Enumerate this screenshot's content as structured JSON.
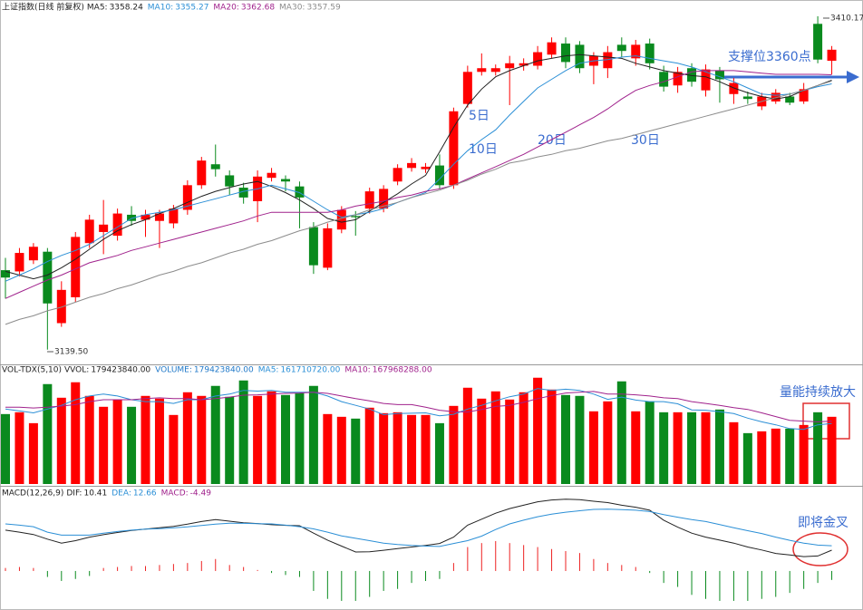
{
  "chart_data": [
    {
      "type": "candlestick",
      "title": "上证指数(日线 前复权)",
      "up_color": "#ff0000",
      "down_color": "#0a8a1e",
      "ylim": [
        3129,
        3416
      ],
      "open": [
        3204,
        3203,
        3212,
        3219,
        3161,
        3182,
        3226,
        3235,
        3232,
        3249,
        3245,
        3244,
        3242,
        3253,
        3273,
        3290,
        3281,
        3271,
        3260,
        3279,
        3278,
        3272,
        3239,
        3206,
        3237,
        3248,
        3254,
        3254,
        3276,
        3287,
        3286,
        3289,
        3273,
        3339,
        3365,
        3365,
        3368,
        3370,
        3370,
        3379,
        3388,
        3387,
        3370,
        3368,
        3387,
        3376,
        3388,
        3365,
        3354,
        3368,
        3350,
        3366,
        3347,
        3345,
        3337,
        3341,
        3345,
        3341,
        3404,
        3374
      ],
      "high": [
        3214,
        3222,
        3226,
        3222,
        3195,
        3235,
        3249,
        3261,
        3254,
        3256,
        3253,
        3253,
        3257,
        3277,
        3296,
        3306,
        3285,
        3275,
        3285,
        3287,
        3281,
        3276,
        3243,
        3242,
        3256,
        3252,
        3271,
        3273,
        3290,
        3295,
        3291,
        3298,
        3336,
        3370,
        3380,
        3371,
        3378,
        3376,
        3386,
        3393,
        3393,
        3390,
        3381,
        3386,
        3393,
        3391,
        3392,
        3370,
        3369,
        3372,
        3371,
        3369,
        3360,
        3349,
        3348,
        3351,
        3348,
        3356,
        3410.17,
        3386
      ],
      "low": [
        3181,
        3199,
        3209,
        3139.5,
        3158,
        3178,
        3222,
        3217,
        3228,
        3240,
        3231,
        3222,
        3238,
        3249,
        3270,
        3280,
        3265,
        3258,
        3243,
        3276,
        3268,
        3238,
        3201,
        3204,
        3234,
        3232,
        3250,
        3251,
        3273,
        3284,
        3283,
        3270,
        3270,
        3336,
        3362,
        3362,
        3338,
        3366,
        3367,
        3376,
        3368,
        3364,
        3355,
        3360,
        3377,
        3370,
        3367,
        3349,
        3348,
        3353,
        3345,
        3340,
        3339,
        3339,
        3334,
        3339,
        3338,
        3339,
        3372,
        3363
      ],
      "close": [
        3198,
        3218,
        3223,
        3177,
        3188,
        3231,
        3245,
        3241,
        3250,
        3244,
        3249,
        3250,
        3254,
        3273,
        3293,
        3286,
        3272,
        3263,
        3280,
        3283,
        3276,
        3263,
        3208,
        3238,
        3253,
        3247,
        3268,
        3270,
        3287,
        3291,
        3288,
        3273,
        3333,
        3365,
        3368,
        3368,
        3372,
        3372,
        3381,
        3389,
        3373,
        3368,
        3378,
        3381,
        3382,
        3387,
        3372,
        3353,
        3365,
        3357,
        3367,
        3359,
        3356,
        3343,
        3345,
        3348,
        3340,
        3351,
        3375,
        3383
      ],
      "series": [
        {
          "name": "MA5:",
          "color": "#222222",
          "values": [
            3203,
            3200,
            3197,
            3200,
            3206,
            3213,
            3221,
            3229,
            3236,
            3241,
            3245,
            3250,
            3254,
            3259,
            3264,
            3268,
            3271,
            3274,
            3276,
            3272,
            3267,
            3261,
            3254,
            3246,
            3243,
            3245,
            3252,
            3259,
            3266,
            3274,
            3281,
            3300,
            3320,
            3338,
            3351,
            3361,
            3366,
            3370,
            3374,
            3376,
            3378,
            3379,
            3378,
            3377,
            3376,
            3372,
            3369,
            3366,
            3364,
            3362,
            3361,
            3357,
            3352,
            3348,
            3345,
            3343,
            3345,
            3350,
            3354,
            3358.24
          ]
        },
        {
          "name": "MA10:",
          "color": "#2b8fd6",
          "values": [
            3195,
            3200,
            3205,
            3211,
            3216,
            3220,
            3225,
            3232,
            3239,
            3246,
            3249,
            3251,
            3253,
            3256,
            3259,
            3262,
            3265,
            3268,
            3270,
            3273,
            3270,
            3267,
            3260,
            3253,
            3247,
            3249,
            3251,
            3254,
            3259,
            3263,
            3267,
            3278,
            3290,
            3301,
            3310,
            3318,
            3330,
            3341,
            3352,
            3359,
            3366,
            3372,
            3374,
            3375,
            3377,
            3378,
            3376,
            3374,
            3372,
            3369,
            3365,
            3361,
            3357,
            3352,
            3347,
            3346,
            3347,
            3350,
            3353,
            3355.27
          ]
        },
        {
          "name": "MA20:",
          "color": "#a0228c",
          "values": [
            3181,
            3186,
            3191,
            3196,
            3200,
            3205,
            3210,
            3213,
            3216,
            3220,
            3223,
            3226,
            3229,
            3232,
            3235,
            3238,
            3241,
            3244,
            3248,
            3251,
            3251,
            3251,
            3251,
            3251,
            3253,
            3256,
            3258,
            3260,
            3263,
            3265,
            3268,
            3270,
            3273,
            3278,
            3283,
            3288,
            3293,
            3298,
            3304,
            3310,
            3316,
            3322,
            3328,
            3335,
            3343,
            3350,
            3354,
            3357,
            3361,
            3365,
            3366,
            3366,
            3366,
            3365,
            3364,
            3363,
            3363,
            3363,
            3363,
            3362.68
          ]
        },
        {
          "name": "MA30:",
          "color": "#8c8c8c",
          "values": [
            3160,
            3164,
            3167,
            3171,
            3174,
            3178,
            3182,
            3185,
            3189,
            3192,
            3196,
            3200,
            3203,
            3207,
            3210,
            3214,
            3218,
            3221,
            3225,
            3228,
            3232,
            3236,
            3239,
            3243,
            3246,
            3249,
            3253,
            3256,
            3259,
            3263,
            3266,
            3269,
            3273,
            3277,
            3282,
            3286,
            3291,
            3293,
            3296,
            3298,
            3301,
            3303,
            3306,
            3309,
            3311,
            3314,
            3317,
            3320,
            3323,
            3326,
            3329,
            3332,
            3335,
            3338,
            3341,
            3344,
            3347,
            3350,
            3354,
            3357.59
          ]
        }
      ],
      "max_label": "3410.17",
      "min_label": "3139.50",
      "annotations": [
        "5日",
        "10日",
        "20日",
        "30日",
        "支撑位3360点"
      ]
    },
    {
      "type": "bar",
      "title": "VOL-TDX(5,10)",
      "ylim": [
        0,
        300000000
      ],
      "vvol": {
        "name": "VVOL:",
        "label": "179423840.00"
      },
      "series": [
        {
          "name": "VOLUME:",
          "kind": "bar",
          "color": "#1f78c8",
          "label": "179423840.00",
          "values": [
            186700000,
            191500000,
            162400000,
            266700000,
            230300000,
            271600000,
            235200000,
            206100000,
            225500000,
            206100000,
            235200000,
            227900000,
            184300000,
            244900000,
            235200000,
            261900000,
            232800000,
            276400000,
            235200000,
            247300000,
            237600000,
            242500000,
            261900000,
            186700000,
            179400000,
            174600000,
            203700000,
            189100000,
            191500000,
            184300000,
            184300000,
            162400000,
            208500000,
            257000000,
            227900000,
            247300000,
            225500000,
            244900000,
            283700000,
            252200000,
            237600000,
            235200000,
            194000000,
            220600000,
            274000000,
            194000000,
            220600000,
            191500000,
            191500000,
            191500000,
            191500000,
            198800000,
            164900000,
            135800000,
            140600000,
            147900000,
            147900000,
            157600000,
            191500000,
            179423840
          ]
        },
        {
          "name": "MA5:",
          "kind": "line",
          "color": "#2b8fd6",
          "label": "161710720.00",
          "values": [
            200000000,
            195000000,
            190000000,
            200000000,
            210000000,
            225000000,
            235000000,
            240000000,
            235000000,
            225000000,
            220000000,
            220000000,
            215000000,
            225000000,
            225000000,
            235000000,
            240000000,
            250000000,
            248000000,
            250000000,
            245000000,
            245000000,
            245000000,
            235000000,
            220000000,
            210000000,
            200000000,
            185000000,
            188000000,
            189000000,
            190000000,
            182000000,
            186000000,
            200000000,
            210000000,
            222000000,
            233000000,
            240000000,
            255000000,
            250000000,
            253000000,
            250000000,
            240000000,
            226000000,
            232000000,
            224000000,
            220000000,
            220000000,
            214000000,
            198000000,
            197000000,
            193000000,
            188000000,
            176000000,
            166000000,
            158000000,
            148000000,
            146000000,
            158000000,
            161710720
          ]
        },
        {
          "name": "MA10:",
          "kind": "line",
          "color": "#a0228c",
          "label": "167968288.00",
          "values": [
            205000000,
            205000000,
            203000000,
            205000000,
            208000000,
            212000000,
            220000000,
            225000000,
            225000000,
            225000000,
            228000000,
            230000000,
            228000000,
            228000000,
            225000000,
            228000000,
            232000000,
            237000000,
            238000000,
            240000000,
            242000000,
            243000000,
            245000000,
            242000000,
            235000000,
            228000000,
            222000000,
            215000000,
            212000000,
            212000000,
            205000000,
            197000000,
            193000000,
            192000000,
            199000000,
            207000000,
            210000000,
            218000000,
            228000000,
            236000000,
            243000000,
            245000000,
            247000000,
            240000000,
            240000000,
            238000000,
            235000000,
            230000000,
            228000000,
            220000000,
            215000000,
            210000000,
            204000000,
            199000000,
            190000000,
            180000000,
            170000000,
            168000000,
            166000000,
            167968288
          ]
        }
      ],
      "annotations": [
        "量能持续放大"
      ]
    },
    {
      "type": "macd",
      "title": "MACD(12,26,9)",
      "ylim": [
        -17.3,
        41.8
      ],
      "up_color": "#ee2222",
      "down_color": "#0a8a1e",
      "series": [
        {
          "name": "DIF:",
          "kind": "line",
          "color": "#222222",
          "values": [
            20.5,
            19.5,
            18.3,
            16,
            14,
            15.2,
            17,
            18.2,
            19.3,
            20.3,
            21,
            21.7,
            22.4,
            23.5,
            24.8,
            25.8,
            25,
            24.2,
            23.8,
            23.2,
            22.9,
            22.7,
            19,
            15.5,
            12.5,
            9.5,
            9.6,
            10.4,
            11.2,
            12,
            12.8,
            13.8,
            17,
            23,
            26,
            29,
            31.3,
            33,
            34.7,
            35.6,
            36,
            35.8,
            35,
            34.3,
            33,
            32,
            30.5,
            25.5,
            22,
            19,
            17,
            15.5,
            14,
            12,
            10.5,
            8.8,
            8,
            7.2,
            7.5,
            10.41
          ]
        },
        {
          "name": "DEA:",
          "kind": "line",
          "color": "#2b8fd6",
          "values": [
            23.6,
            23,
            22.2,
            19.5,
            18,
            18,
            18,
            19,
            19.8,
            20.5,
            21,
            21.2,
            21.6,
            22.1,
            22.8,
            23.5,
            24,
            23.9,
            23.7,
            23.6,
            23,
            22.2,
            21.1,
            19.5,
            17.6,
            16.4,
            15.2,
            14,
            13.3,
            12.8,
            12.5,
            12.3,
            13.8,
            15.2,
            17.5,
            20.8,
            23.6,
            25.5,
            27.2,
            28.5,
            29.5,
            30.2,
            30.9,
            31,
            30.8,
            30.5,
            29.8,
            28.3,
            27,
            25.8,
            24.8,
            23.3,
            21.7,
            20.2,
            18.8,
            17,
            15.4,
            14,
            13,
            12.66
          ]
        },
        {
          "name": "MACD:",
          "kind": "bar",
          "color": "#a0228c",
          "values": [
            1.5,
            2,
            1.5,
            -3,
            -5,
            -4,
            -2.5,
            1.5,
            2,
            2.5,
            2.5,
            3,
            3.5,
            4,
            5,
            6,
            3,
            2,
            0.5,
            -1,
            -2,
            -3,
            -10,
            -14,
            -15,
            -15,
            -13,
            -10,
            -9,
            -6,
            -5,
            -4,
            4,
            12,
            14,
            15,
            14,
            13,
            12,
            11,
            10,
            9,
            6,
            4,
            3,
            2,
            -1,
            -6,
            -8,
            -12,
            -14,
            -15,
            -15,
            -15,
            -14,
            -13,
            -11,
            -9,
            -6,
            -4.49
          ]
        }
      ],
      "annotations": [
        "即将金叉"
      ]
    }
  ]
}
